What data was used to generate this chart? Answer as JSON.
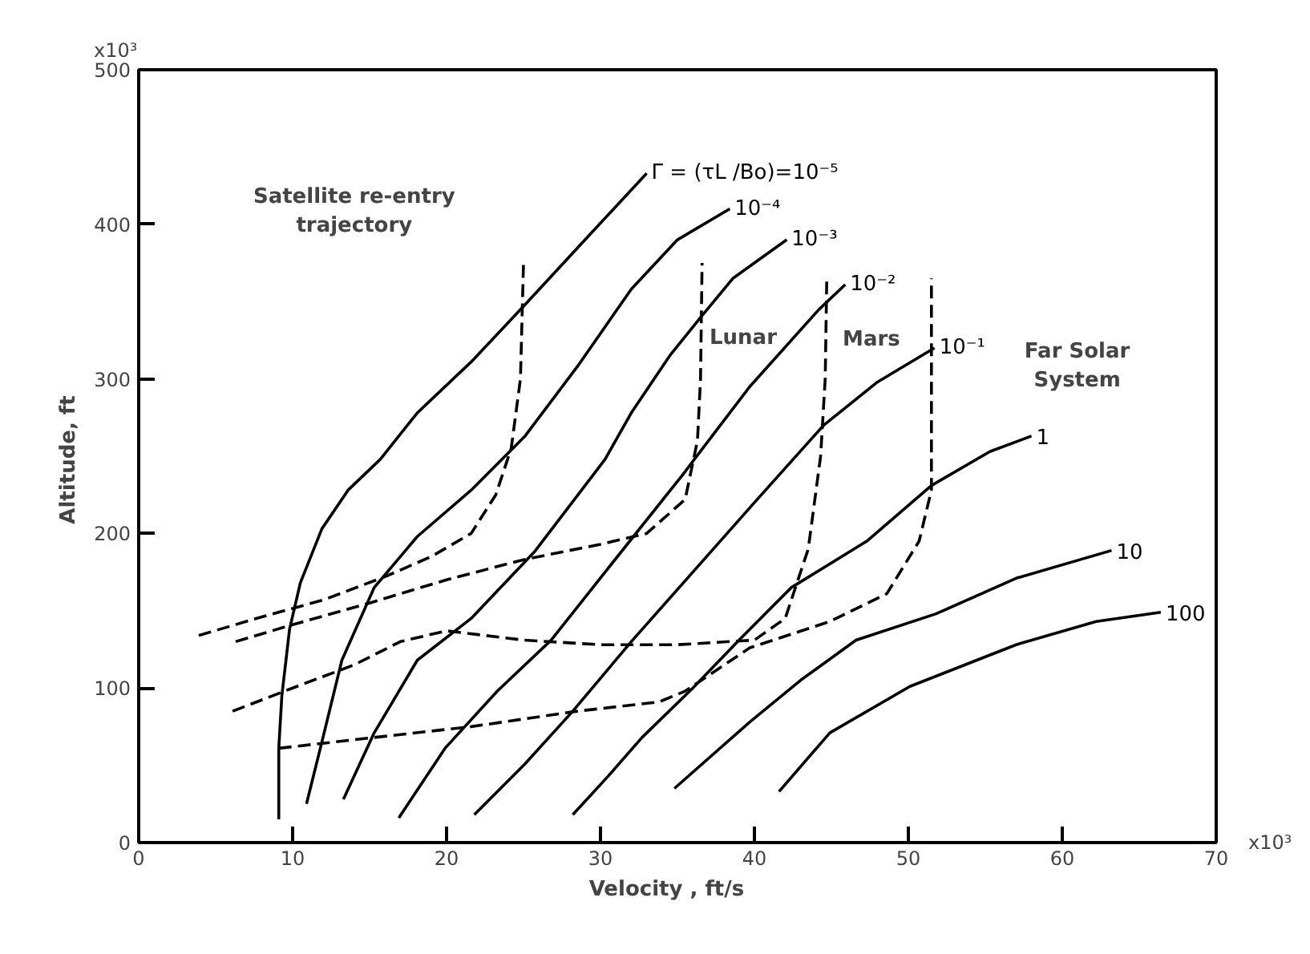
{
  "chart_data": {
    "type": "line",
    "xlabel": "Velocity ,    ft/s",
    "ylabel": "Altitude,  ft",
    "xlim": [
      0,
      70
    ],
    "ylim": [
      0,
      500
    ],
    "xticks": [
      0,
      10,
      20,
      30,
      40,
      50,
      60,
      70
    ],
    "yticks": [
      0,
      100,
      200,
      300,
      400,
      500
    ],
    "grid": false,
    "line_style": "solid",
    "annotations": [
      "x10³",
      "x10³",
      "Satellite re-entry\ntrajectory",
      "Lunar",
      "Mars",
      "Far Solar\nSystem"
    ],
    "series": [
      {
        "name": "Γ = (τL /Bo)=10⁻⁵",
        "color": "#000000",
        "x": [
          9.1,
          9.1,
          9.3,
          9.8,
          10.5,
          11.9,
          13.6,
          15.7,
          18.1,
          21.6,
          25.1,
          29,
          33.0
        ],
        "values": [
          15,
          61,
          95,
          138,
          168,
          203,
          228,
          248,
          278,
          311,
          348,
          390,
          433
        ]
      },
      {
        "name": "10⁻⁴",
        "color": "#000000",
        "x": [
          10.9,
          11.9,
          13.2,
          15.3,
          18.1,
          21.6,
          25.1,
          28.5,
          32.0,
          35,
          38.4
        ],
        "values": [
          25,
          65,
          118,
          165,
          198,
          228,
          263,
          308,
          358,
          390,
          410
        ]
      },
      {
        "name": "10⁻³",
        "color": "#000000",
        "x": [
          13.3,
          15.3,
          18.1,
          21.6,
          25.7,
          30.3,
          32.0,
          34.5,
          36.6,
          38.6,
          42.1
        ],
        "values": [
          28,
          71,
          118,
          145,
          188,
          248,
          278,
          315,
          341,
          365,
          390
        ]
      },
      {
        "name": "10⁻²",
        "color": "#000000",
        "x": [
          16.9,
          19.9,
          23.3,
          26.8,
          30.3,
          35.5,
          36.1,
          39.7,
          44.2,
          45.9
        ],
        "values": [
          16,
          61,
          98,
          131,
          175,
          240,
          248,
          295,
          345,
          361
        ]
      },
      {
        "name": "10⁻¹",
        "color": "#000000",
        "x": [
          21.8,
          25.1,
          28.2,
          32,
          36,
          40,
          44.5,
          48,
          51.7
        ],
        "values": [
          18,
          51,
          85,
          130,
          175,
          220,
          270,
          298,
          320
        ]
      },
      {
        "name": "1",
        "color": "#000000",
        "x": [
          28.2,
          30.5,
          32.7,
          36,
          39.0,
          42.4,
          47.3,
          51.5,
          55.3,
          58.0
        ],
        "values": [
          18,
          43,
          68,
          100,
          131,
          165,
          195,
          231,
          253,
          263
        ]
      },
      {
        "name": "10",
        "color": "#000000",
        "x": [
          34.8,
          39.7,
          43,
          46.6,
          51.8,
          57,
          63.2
        ],
        "values": [
          35,
          78,
          105,
          131,
          148,
          171,
          189
        ]
      },
      {
        "name": "100",
        "color": "#000000",
        "x": [
          41.6,
          44.9,
          50.1,
          57,
          62.2,
          66.4
        ],
        "values": [
          33,
          71,
          101,
          128,
          143,
          149
        ]
      },
      {
        "color": "#000000",
        "line_style": "dashed",
        "x": [
          3.9,
          8,
          12,
          16,
          19,
          21.6,
          23.2,
          24.2,
          24.8,
          25.0
        ],
        "values": [
          134,
          146,
          157,
          172,
          185,
          200,
          225,
          255,
          300,
          375
        ]
      },
      {
        "color": "#000000",
        "line_style": "dashed",
        "x": [
          6.3,
          10,
          15,
          20,
          25,
          30,
          33,
          35.5,
          36.3,
          36.5,
          36.6
        ],
        "values": [
          130,
          141,
          155,
          170,
          183,
          193,
          200,
          222,
          260,
          300,
          375
        ]
      },
      {
        "color": "#000000",
        "line_style": "dashed",
        "x": [
          6.1,
          10,
          14,
          17,
          20,
          25,
          30,
          35,
          40,
          42,
          43.5,
          44.3,
          44.6,
          44.7
        ],
        "values": [
          85,
          100,
          115,
          130,
          137,
          131,
          128,
          128,
          131,
          145,
          190,
          250,
          300,
          365
        ]
      },
      {
        "color": "#000000",
        "line_style": "dashed",
        "x": [
          9.1,
          15.3,
          21.6,
          28.5,
          33.8,
          35.5,
          39.7,
          44.9,
          48.6,
          50.7,
          51.5,
          51.5
        ],
        "values": [
          61,
          68,
          75,
          85,
          91,
          98,
          126,
          143,
          161,
          195,
          228,
          365
        ]
      }
    ]
  }
}
